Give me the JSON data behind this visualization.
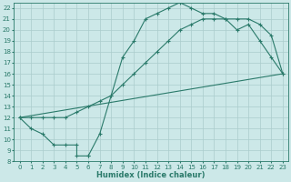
{
  "xlabel": "Humidex (Indice chaleur)",
  "bg_color": "#cce8e8",
  "grid_color": "#aacccc",
  "line_color": "#2a7a6a",
  "xlim": [
    -0.5,
    23.5
  ],
  "ylim": [
    8,
    22.5
  ],
  "xticks": [
    0,
    1,
    2,
    3,
    4,
    5,
    6,
    7,
    8,
    9,
    10,
    11,
    12,
    13,
    14,
    15,
    16,
    17,
    18,
    19,
    20,
    21,
    22,
    23
  ],
  "yticks": [
    8,
    9,
    10,
    11,
    12,
    13,
    14,
    15,
    16,
    17,
    18,
    19,
    20,
    21,
    22
  ],
  "line1_x": [
    0,
    1,
    2,
    3,
    4,
    5,
    5,
    6,
    6,
    7,
    8,
    9,
    10,
    11,
    12,
    13,
    14,
    15,
    16,
    17,
    18,
    19,
    20,
    21,
    22,
    23
  ],
  "line1_y": [
    12,
    11,
    10.5,
    9.5,
    9.5,
    9.5,
    8.5,
    8.5,
    8.5,
    10.5,
    14.0,
    17.5,
    19.0,
    21.0,
    21.5,
    22.0,
    22.5,
    22.0,
    21.5,
    21.5,
    21.0,
    20.0,
    20.5,
    19.0,
    17.5,
    16.0
  ],
  "line2_x": [
    0,
    1,
    2,
    3,
    4,
    5,
    6,
    7,
    8,
    9,
    10,
    11,
    12,
    13,
    14,
    15,
    16,
    17,
    18,
    19,
    20,
    21,
    22,
    23
  ],
  "line2_y": [
    12,
    12,
    12,
    12,
    12,
    12.5,
    13,
    13.5,
    14,
    15,
    16,
    17,
    18,
    19,
    20,
    20.5,
    21,
    21,
    21,
    21,
    21,
    20.5,
    19.5,
    16
  ],
  "line3_x": [
    0,
    23
  ],
  "line3_y": [
    12,
    16
  ]
}
